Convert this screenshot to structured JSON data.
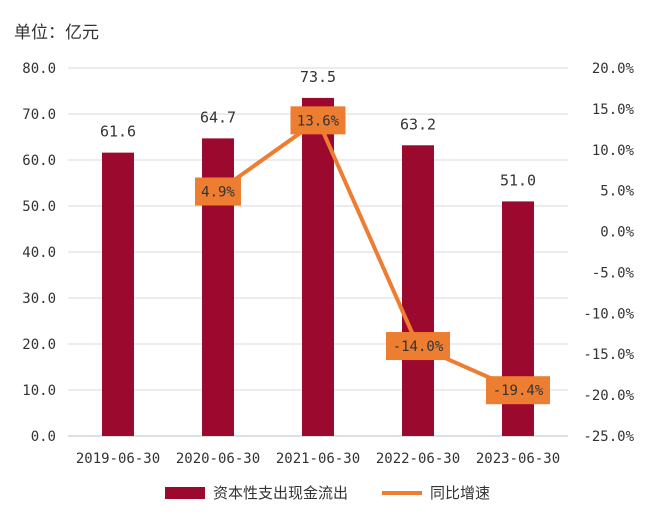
{
  "chart_data": {
    "type": "bar",
    "unit_label": "单位：亿元",
    "categories": [
      "2019-06-30",
      "2020-06-30",
      "2021-06-30",
      "2022-06-30",
      "2023-06-30"
    ],
    "series": [
      {
        "name": "资本性支出现金流出",
        "type": "bar",
        "axis": "left",
        "color": "#9b0a2e",
        "values": [
          61.6,
          64.7,
          73.5,
          63.2,
          51.0
        ],
        "labels": [
          "61.6",
          "64.7",
          "73.5",
          "63.2",
          "51.0"
        ]
      },
      {
        "name": "同比增速",
        "type": "line",
        "axis": "right",
        "color": "#ed7d31",
        "values": [
          null,
          4.9,
          13.6,
          -14.0,
          -19.4
        ],
        "labels": [
          "",
          "4.9%",
          "13.6%",
          "-14.0%",
          "-19.4%"
        ]
      }
    ],
    "left_axis": {
      "ylim": [
        0,
        80
      ],
      "ticks": [
        0,
        10,
        20,
        30,
        40,
        50,
        60,
        70,
        80
      ],
      "tick_labels": [
        "0.0",
        "10.0",
        "20.0",
        "30.0",
        "40.0",
        "50.0",
        "60.0",
        "70.0",
        "80.0"
      ]
    },
    "right_axis": {
      "ylim": [
        -25,
        20
      ],
      "ticks": [
        -25,
        -20,
        -15,
        -10,
        -5,
        0,
        5,
        10,
        15,
        20
      ],
      "tick_labels": [
        "-25.0%",
        "-20.0%",
        "-15.0%",
        "-10.0%",
        "-5.0%",
        "0.0%",
        "5.0%",
        "10.0%",
        "15.0%",
        "20.0%"
      ]
    },
    "grid": true,
    "legend": "bottom"
  }
}
